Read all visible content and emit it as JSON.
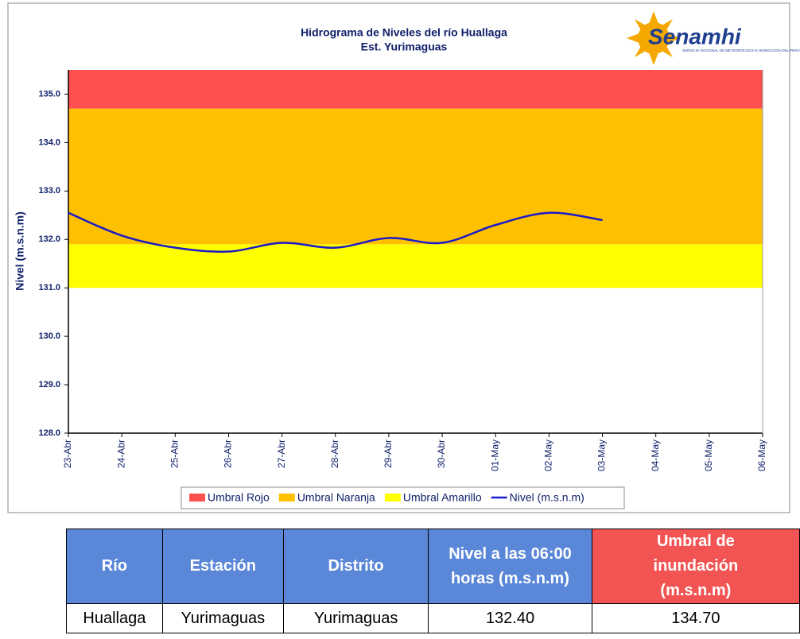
{
  "chart_data": {
    "type": "line",
    "title": "Hidrograma de Niveles del río Huallaga",
    "subtitle": "Est. Yurimaguas",
    "y_label": "Nivel (m.s.n.m)",
    "logo": {
      "name": "Senamhi",
      "tagline": "SERVICIO NACIONAL DE METEOROLOGÍA E HIDROLOGÍA DEL PERÚ"
    },
    "categories": [
      "23-Abr",
      "24-Abr",
      "25-Abr",
      "26-Abr",
      "27-Abr",
      "28-Abr",
      "29-Abr",
      "30-Abr",
      "01-May",
      "02-May",
      "03-May",
      "04-May",
      "05-May",
      "06-May"
    ],
    "bands": [
      {
        "name": "Umbral Rojo",
        "color": "#ff5050",
        "from": 134.7,
        "to": 135.5
      },
      {
        "name": "Umbral Naranja",
        "color": "#ffc000",
        "from": 131.9,
        "to": 134.7
      },
      {
        "name": "Umbral Amarillo",
        "color": "#ffff00",
        "from": 131.0,
        "to": 131.9
      }
    ],
    "series": [
      {
        "name": "Nivel (m.s.n.m)",
        "color": "#1a1ac8",
        "values": [
          132.55,
          132.08,
          131.83,
          131.75,
          131.93,
          131.83,
          132.03,
          131.93,
          132.3,
          132.55,
          132.4,
          null,
          null,
          null
        ]
      }
    ],
    "ylim": [
      128,
      135.5
    ],
    "yticks": [
      {
        "value": 128,
        "label": "128.0"
      },
      {
        "value": 129,
        "label": "129.0"
      },
      {
        "value": 130,
        "label": "130.0"
      },
      {
        "value": 131,
        "label": "131.0"
      },
      {
        "value": 132,
        "label": "132.0"
      },
      {
        "value": 133,
        "label": "133.0"
      },
      {
        "value": 134,
        "label": "134.0"
      },
      {
        "value": 135,
        "label": "135.0"
      }
    ],
    "grid": false,
    "legend": "bottom"
  },
  "table": {
    "header": [
      "Río",
      "Estación",
      "Distrito",
      "Nivel a las 06:00 horas (m.s.n.m)",
      "Umbral de inundación (m.s.n.m)"
    ],
    "rows": [
      [
        "Huallaga",
        "Yurimaguas",
        "Yurimaguas",
        "132.40",
        "134.70"
      ]
    ]
  }
}
